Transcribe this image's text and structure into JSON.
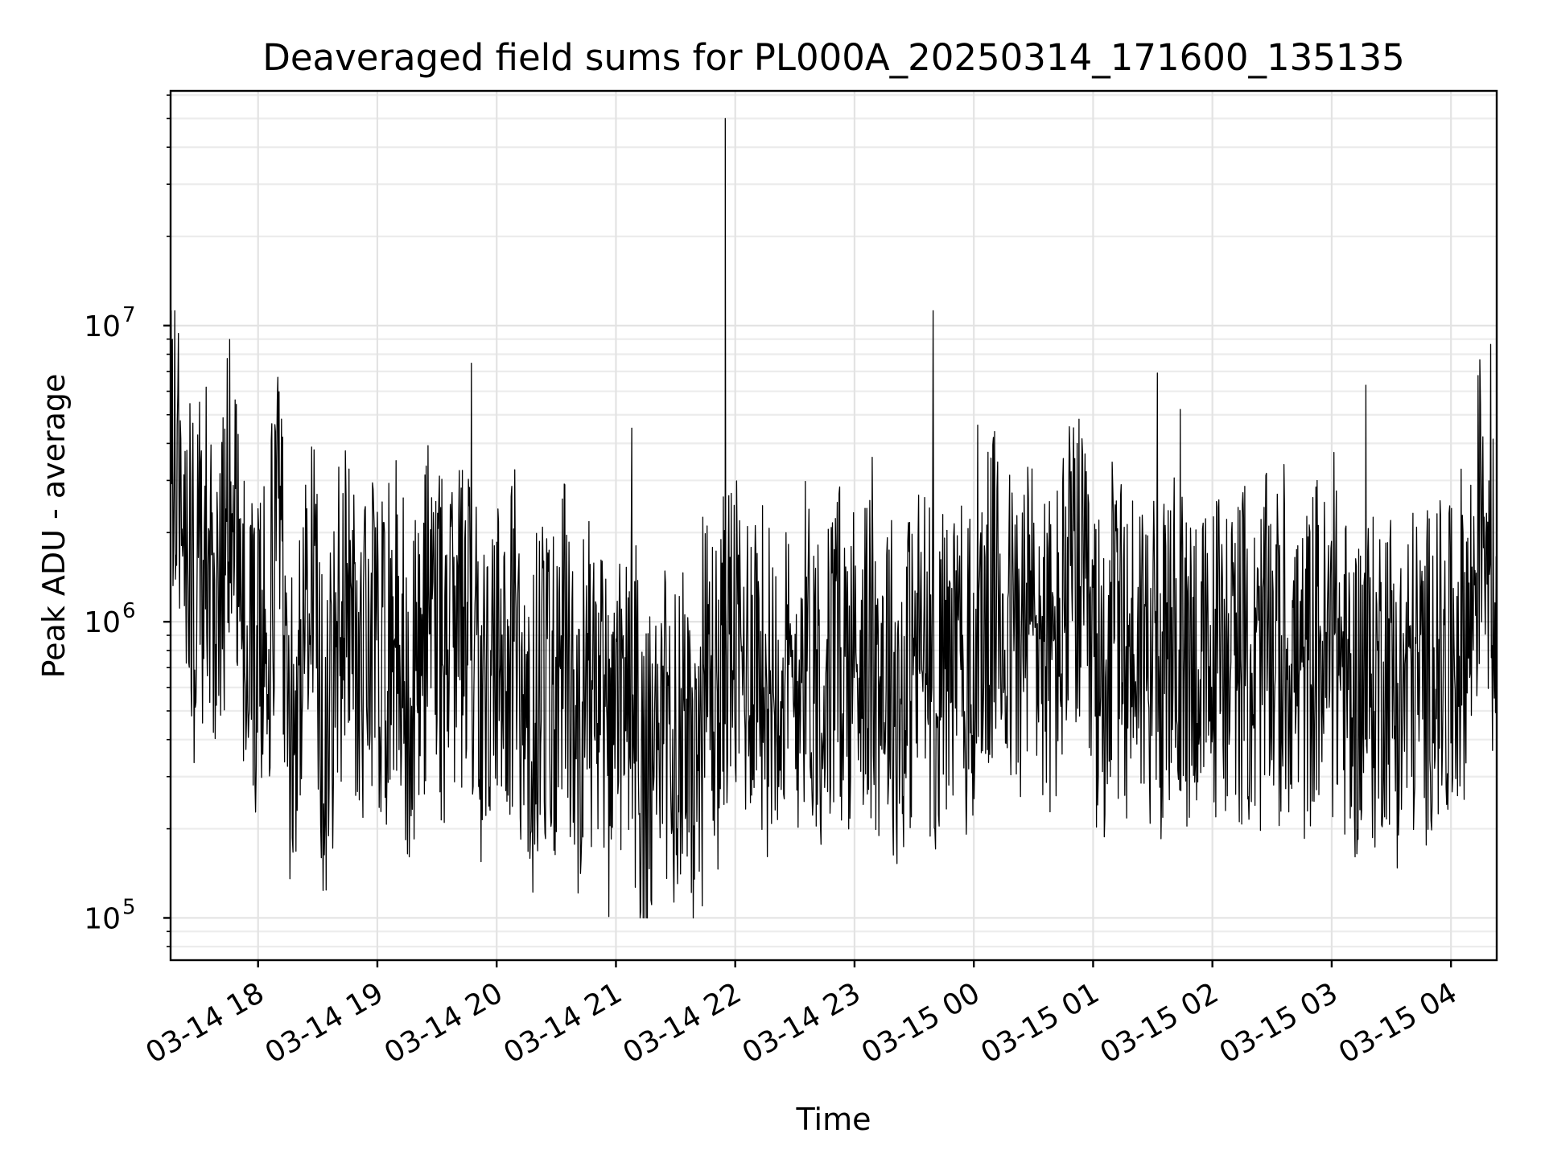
{
  "chart_data": {
    "type": "line",
    "title": "Deaveraged field sums for PL000A_20250314_171600_135135",
    "xlabel": "Time",
    "ylabel": "Peak ADU - average",
    "yscale": "log",
    "ylim": [
      72000,
      62000000
    ],
    "xlim": [
      "2025-03-14 17:16",
      "2025-03-15 04:23"
    ],
    "grid": true,
    "x_ticks": [
      {
        "value": "2025-03-14 18:00",
        "label": "03-14 18"
      },
      {
        "value": "2025-03-14 19:00",
        "label": "03-14 19"
      },
      {
        "value": "2025-03-14 20:00",
        "label": "03-14 20"
      },
      {
        "value": "2025-03-14 21:00",
        "label": "03-14 21"
      },
      {
        "value": "2025-03-14 22:00",
        "label": "03-14 22"
      },
      {
        "value": "2025-03-14 23:00",
        "label": "03-14 23"
      },
      {
        "value": "2025-03-15 00:00",
        "label": "03-15 00"
      },
      {
        "value": "2025-03-15 01:00",
        "label": "03-15 01"
      },
      {
        "value": "2025-03-15 02:00",
        "label": "03-15 02"
      },
      {
        "value": "2025-03-15 03:00",
        "label": "03-15 03"
      },
      {
        "value": "2025-03-15 04:00",
        "label": "03-15 04"
      }
    ],
    "y_ticks": [
      {
        "value": 100000,
        "base": "10",
        "exp": "5"
      },
      {
        "value": 1000000,
        "base": "10",
        "exp": "6"
      },
      {
        "value": 10000000,
        "base": "10",
        "exp": "7"
      }
    ],
    "series": [
      {
        "color": "#000000",
        "description_values": "dense noisy time series; low envelope ~1.5e5-4e5, typical ~6e5-1.5e6, high envelope ~3e6-8e6; early part (17:16-18:00) 1.5e6-7e6",
        "x": [
          "2025-03-14 17:16",
          "2025-03-14 17:22",
          "2025-03-14 17:28",
          "2025-03-14 17:34",
          "2025-03-14 17:40",
          "2025-03-14 17:46",
          "2025-03-14 17:52",
          "2025-03-14 17:58",
          "2025-03-14 18:04",
          "2025-03-14 18:10",
          "2025-03-14 18:16",
          "2025-03-14 18:22",
          "2025-03-14 18:28",
          "2025-03-14 18:34",
          "2025-03-14 18:40",
          "2025-03-14 18:46",
          "2025-03-14 18:52",
          "2025-03-14 18:58",
          "2025-03-14 19:04",
          "2025-03-14 19:10",
          "2025-03-14 19:16",
          "2025-03-14 19:22",
          "2025-03-14 19:28",
          "2025-03-14 19:34",
          "2025-03-14 19:40",
          "2025-03-14 19:46",
          "2025-03-14 19:52",
          "2025-03-14 19:58",
          "2025-03-14 20:04",
          "2025-03-14 20:10",
          "2025-03-14 20:16",
          "2025-03-14 20:22",
          "2025-03-14 20:28",
          "2025-03-14 20:34",
          "2025-03-14 20:40",
          "2025-03-14 20:46",
          "2025-03-14 20:52",
          "2025-03-14 20:58",
          "2025-03-14 21:04",
          "2025-03-14 21:10",
          "2025-03-14 21:16",
          "2025-03-14 21:22",
          "2025-03-14 21:28",
          "2025-03-14 21:34",
          "2025-03-14 21:40",
          "2025-03-14 21:46",
          "2025-03-14 21:52",
          "2025-03-14 21:55",
          "2025-03-14 21:58",
          "2025-03-14 22:04",
          "2025-03-14 22:10",
          "2025-03-14 22:16",
          "2025-03-14 22:22",
          "2025-03-14 22:28",
          "2025-03-14 22:34",
          "2025-03-14 22:40",
          "2025-03-14 22:46",
          "2025-03-14 22:52",
          "2025-03-14 22:58",
          "2025-03-14 23:04",
          "2025-03-14 23:10",
          "2025-03-14 23:16",
          "2025-03-14 23:22",
          "2025-03-14 23:28",
          "2025-03-14 23:34",
          "2025-03-14 23:40",
          "2025-03-14 23:46",
          "2025-03-14 23:52",
          "2025-03-14 23:58",
          "2025-03-15 00:04",
          "2025-03-15 00:10",
          "2025-03-15 00:16",
          "2025-03-15 00:22",
          "2025-03-15 00:28",
          "2025-03-15 00:34",
          "2025-03-15 00:40",
          "2025-03-15 00:46",
          "2025-03-15 00:52",
          "2025-03-15 00:58",
          "2025-03-15 01:04",
          "2025-03-15 01:10",
          "2025-03-15 01:16",
          "2025-03-15 01:22",
          "2025-03-15 01:28",
          "2025-03-15 01:34",
          "2025-03-15 01:40",
          "2025-03-15 01:46",
          "2025-03-15 01:52",
          "2025-03-15 01:58",
          "2025-03-15 02:04",
          "2025-03-15 02:10",
          "2025-03-15 02:16",
          "2025-03-15 02:22",
          "2025-03-15 02:28",
          "2025-03-15 02:34",
          "2025-03-15 02:40",
          "2025-03-15 02:46",
          "2025-03-15 02:52",
          "2025-03-15 02:58",
          "2025-03-15 03:04",
          "2025-03-15 03:10",
          "2025-03-15 03:16",
          "2025-03-15 03:22",
          "2025-03-15 03:28",
          "2025-03-15 03:34",
          "2025-03-15 03:40",
          "2025-03-15 03:46",
          "2025-03-15 03:52",
          "2025-03-15 03:58",
          "2025-03-15 04:04",
          "2025-03-15 04:10",
          "2025-03-15 04:16",
          "2025-03-15 04:22"
        ],
        "y": [
          4000000,
          2500000,
          1200000,
          2000000,
          900000,
          3000000,
          1200000,
          700000,
          800000,
          2500000,
          500000,
          700000,
          1500000,
          300000,
          900000,
          1500000,
          600000,
          1000000,
          700000,
          1200000,
          500000,
          800000,
          1500000,
          600000,
          900000,
          1200000,
          500000,
          800000,
          600000,
          1100000,
          300000,
          700000,
          500000,
          900000,
          400000,
          700000,
          500000,
          300000,
          600000,
          400000,
          250000,
          500000,
          300000,
          600000,
          200000,
          700000,
          500000,
          50000000,
          900000,
          700000,
          900000,
          600000,
          800000,
          500000,
          900000,
          700000,
          600000,
          800000,
          700000,
          900000,
          600000,
          800000,
          500000,
          700000,
          900000,
          600000,
          700000,
          800000,
          600000,
          900000,
          1200000,
          1000000,
          800000,
          1100000,
          900000,
          700000,
          1200000,
          1500000,
          800000,
          600000,
          1000000,
          700000,
          900000,
          800000,
          600000,
          900000,
          700000,
          800000,
          600000,
          900000,
          700000,
          800000,
          600000,
          900000,
          700000,
          800000,
          600000,
          900000,
          700000,
          800000,
          500000,
          700000,
          600000,
          800000,
          500000,
          700000,
          600000,
          800000,
          600000,
          900000,
          1000000,
          3000000,
          1000000
        ]
      }
    ]
  }
}
